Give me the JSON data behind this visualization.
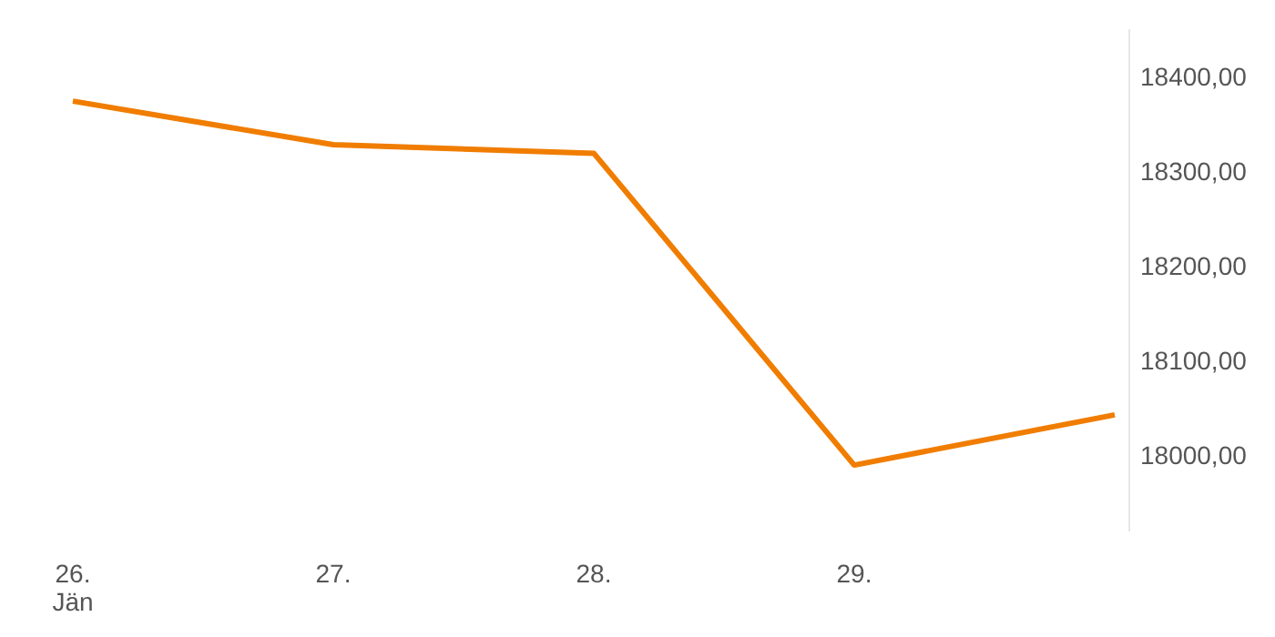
{
  "chart_data": {
    "type": "line",
    "categories": [
      "26.\nJän",
      "27.",
      "28.",
      "29.",
      null
    ],
    "series": [
      {
        "color": "#f07d00",
        "values": [
          18374,
          18328,
          18319,
          17990,
          18043
        ]
      }
    ],
    "ylim": [
      17920,
      18450
    ],
    "yticks": [
      {
        "value": 18000,
        "label": "18000,00"
      },
      {
        "value": 18100,
        "label": "18100,00"
      },
      {
        "value": 18200,
        "label": "18200,00"
      },
      {
        "value": 18300,
        "label": "18300,00"
      },
      {
        "value": 18400,
        "label": "18400,00"
      }
    ],
    "grid": false,
    "marker": "none",
    "line_style": "solid"
  }
}
